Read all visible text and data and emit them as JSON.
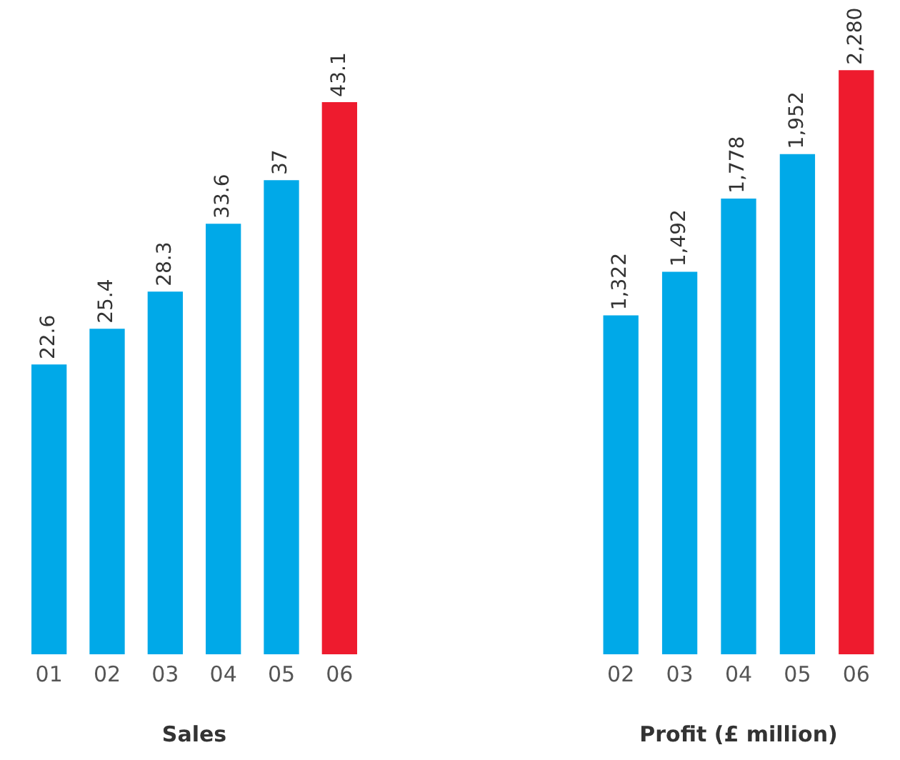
{
  "chart_data": [
    {
      "type": "bar",
      "xlabel": "Sales",
      "categories": [
        "01",
        "02",
        "03",
        "04",
        "05",
        "06"
      ],
      "values": [
        22.6,
        25.4,
        28.3,
        33.6,
        37,
        43.1
      ],
      "colors": [
        "#00a9e8",
        "#00a9e8",
        "#00a9e8",
        "#00a9e8",
        "#00a9e8",
        "#ee1b2e"
      ],
      "data_labels": true,
      "grid": false,
      "legend": false
    },
    {
      "type": "bar",
      "xlabel": "Profit (£ million)",
      "categories": [
        "02",
        "03",
        "04",
        "05",
        "06"
      ],
      "values": [
        1322,
        1492,
        1778,
        1952,
        2280
      ],
      "value_labels": [
        "1,322",
        "1,492",
        "1,778",
        "1,952",
        "2,280"
      ],
      "colors": [
        "#00a9e8",
        "#00a9e8",
        "#00a9e8",
        "#00a9e8",
        "#ee1b2e"
      ],
      "grid": false,
      "legend": false
    }
  ]
}
